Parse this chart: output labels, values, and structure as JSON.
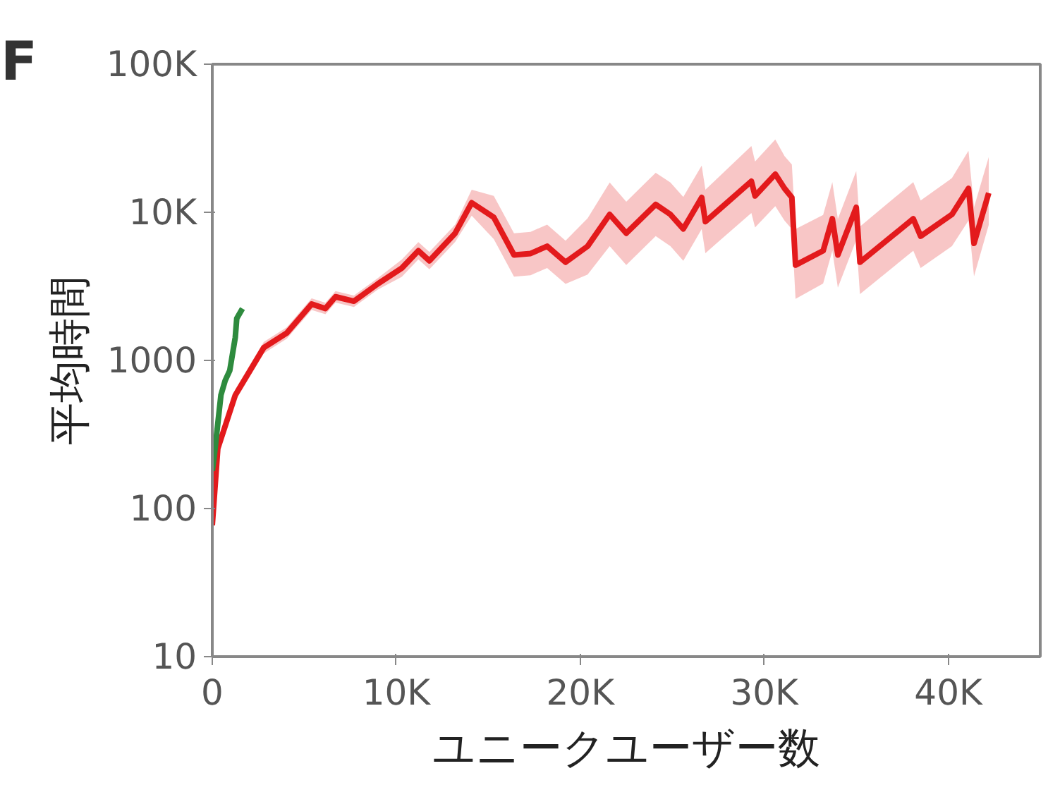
{
  "chart_data": {
    "type": "line",
    "xlabel": "ユニークユーザー数",
    "ylabel": "平均時間",
    "annotations": [
      "F"
    ],
    "log": "y",
    "grid": false,
    "xlim": [
      0,
      45000
    ],
    "xticks": [
      0,
      {
        "value": 10000,
        "label": "10K"
      },
      {
        "value": 20000,
        "label": "20K"
      },
      {
        "value": 30000,
        "label": "30K"
      },
      {
        "value": 40000,
        "label": "40K"
      }
    ],
    "ylim": [
      10,
      100000
    ],
    "yticks": [
      10,
      100,
      1000,
      {
        "value": 10000,
        "label": "10K"
      },
      {
        "value": 100000,
        "label": "100K"
      }
    ],
    "series": [
      {
        "color": "#e31a1c",
        "x": [
          0,
          300,
          1250,
          2800,
          4050,
          5400,
          6150,
          6700,
          7700,
          9000,
          10300,
          11200,
          11800,
          13200,
          14100,
          15300,
          16400,
          17300,
          18200,
          19200,
          20400,
          21600,
          22500,
          24100,
          24900,
          25600,
          26600,
          26800,
          29300,
          29500,
          30600,
          31100,
          31500,
          31700,
          33200,
          33700,
          34000,
          35000,
          35200,
          38100,
          38500,
          40200,
          41100,
          41400,
          42200
        ],
        "values": [
          77,
          254,
          583,
          1220,
          1530,
          2400,
          2240,
          2690,
          2510,
          3290,
          4200,
          5500,
          4710,
          7220,
          11600,
          9240,
          5150,
          5270,
          5900,
          4600,
          5900,
          9670,
          7220,
          11300,
          9670,
          7730,
          12600,
          8650,
          16200,
          12900,
          18100,
          14500,
          12600,
          4400,
          5500,
          9040,
          5150,
          10800,
          4600,
          9040,
          6900,
          9670,
          14500,
          6170,
          13500
        ],
        "lower": [
          70,
          232,
          533,
          1115,
          1400,
          2190,
          2050,
          2460,
          2295,
          3010,
          3670,
          4810,
          4120,
          6310,
          9500,
          6600,
          3680,
          3760,
          4210,
          3290,
          3800,
          5900,
          4400,
          6900,
          5900,
          4700,
          7700,
          5300,
          9900,
          7900,
          11000,
          8800,
          7700,
          2600,
          3300,
          5500,
          3100,
          6500,
          2800,
          5500,
          4200,
          5900,
          8800,
          3700,
          8200
        ],
        "upper": [
          85,
          278,
          638,
          1335,
          1675,
          2625,
          2450,
          2940,
          2745,
          3600,
          4800,
          6290,
          5390,
          8260,
          14200,
          12900,
          7210,
          7380,
          8260,
          6440,
          9100,
          15900,
          11800,
          18500,
          15900,
          12700,
          20700,
          14200,
          28000,
          22000,
          31000,
          24000,
          21000,
          7700,
          9600,
          16000,
          9000,
          19000,
          8000,
          16000,
          12000,
          17000,
          26000,
          10800,
          23600
        ]
      },
      {
        "color": "#2e8b3e",
        "x": [
          0,
          100,
          470,
          700,
          950,
          1250,
          1330,
          1640
        ],
        "values": [
          180,
          222,
          583,
          730,
          855,
          1430,
          1920,
          2240
        ]
      }
    ]
  }
}
